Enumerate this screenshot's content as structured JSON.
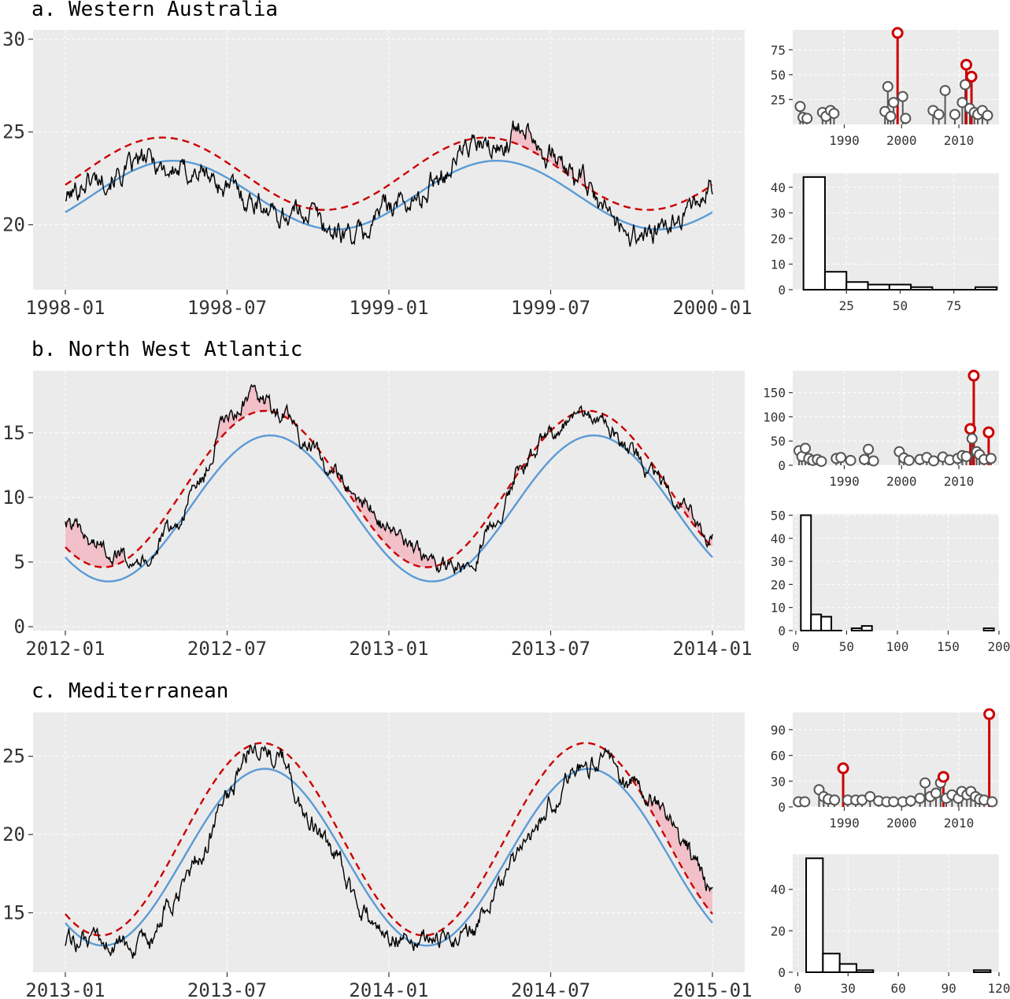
{
  "chart_data": [
    {
      "panel": "a",
      "title": "a. Western Australia",
      "main": {
        "type": "line",
        "x_ticks": [
          "1998-01",
          "1998-07",
          "1999-01",
          "1999-07",
          "2000-01"
        ],
        "y_ticks": [
          20,
          25,
          30
        ],
        "ylim": [
          16.5,
          30.5
        ],
        "climatology": {
          "mean": 21.6,
          "amp": 1.85,
          "peak_month": 4.0
        },
        "threshold": {
          "mean": 22.75,
          "amp": 1.95,
          "peak_month": 3.6
        },
        "temperature": {
          "months": [
            0,
            1,
            2,
            3,
            4,
            5,
            6,
            7,
            8,
            9,
            10,
            11,
            12,
            13,
            14,
            15,
            16,
            17,
            18,
            19,
            20,
            21,
            22,
            23,
            24
          ],
          "values": [
            21.5,
            22.5,
            22.7,
            23.5,
            22.9,
            22.8,
            22.0,
            21.3,
            20.5,
            20.8,
            19.6,
            19.5,
            21.2,
            21.2,
            22.9,
            24.3,
            24.0,
            25.5,
            23.7,
            22.6,
            20.8,
            19.5,
            19.5,
            20.6,
            22.0
          ]
        }
      },
      "lollipop": {
        "type": "scatter",
        "x_ticks": [
          1990,
          2000,
          2010
        ],
        "xlim": [
          1981,
          2017
        ],
        "y_ticks": [
          25,
          50,
          75
        ],
        "ylim": [
          0,
          95
        ],
        "events": [
          {
            "year": 1982.3,
            "v": 18
          },
          {
            "year": 1982.8,
            "v": 7
          },
          {
            "year": 1983.5,
            "v": 6
          },
          {
            "year": 1986.2,
            "v": 12
          },
          {
            "year": 1986.8,
            "v": 8
          },
          {
            "year": 1987.6,
            "v": 14
          },
          {
            "year": 1988.2,
            "v": 11
          },
          {
            "year": 1997.1,
            "v": 13
          },
          {
            "year": 1997.6,
            "v": 38
          },
          {
            "year": 1998.1,
            "v": 8
          },
          {
            "year": 1998.6,
            "v": 22
          },
          {
            "year": 1999.3,
            "v": 92,
            "top": true
          },
          {
            "year": 2000.2,
            "v": 28
          },
          {
            "year": 2000.7,
            "v": 6
          },
          {
            "year": 2005.5,
            "v": 14
          },
          {
            "year": 2006.5,
            "v": 10
          },
          {
            "year": 2007.6,
            "v": 34
          },
          {
            "year": 2009.3,
            "v": 10
          },
          {
            "year": 2010.6,
            "v": 22
          },
          {
            "year": 2011.1,
            "v": 40
          },
          {
            "year": 2011.3,
            "v": 60,
            "top": true
          },
          {
            "year": 2011.9,
            "v": 16
          },
          {
            "year": 2012.2,
            "v": 48,
            "top": true
          },
          {
            "year": 2012.7,
            "v": 12
          },
          {
            "year": 2013.3,
            "v": 10
          },
          {
            "year": 2014.1,
            "v": 14
          },
          {
            "year": 2015.0,
            "v": 9
          }
        ]
      },
      "histogram": {
        "type": "bar",
        "x_ticks": [
          25,
          50,
          75
        ],
        "xlim": [
          0,
          96
        ],
        "y_ticks": [
          0,
          10,
          20,
          30,
          40
        ],
        "ylim": [
          0,
          45.5
        ],
        "bins": [
          {
            "x0": 5,
            "x1": 15,
            "count": 44
          },
          {
            "x0": 15,
            "x1": 25,
            "count": 7
          },
          {
            "x0": 25,
            "x1": 35,
            "count": 3
          },
          {
            "x0": 35,
            "x1": 45,
            "count": 2
          },
          {
            "x0": 45,
            "x1": 55,
            "count": 2
          },
          {
            "x0": 55,
            "x1": 65,
            "count": 1
          },
          {
            "x0": 65,
            "x1": 75,
            "count": 0
          },
          {
            "x0": 75,
            "x1": 85,
            "count": 0
          },
          {
            "x0": 85,
            "x1": 95,
            "count": 1
          }
        ]
      }
    },
    {
      "panel": "b",
      "title": "b. North West Atlantic",
      "main": {
        "type": "line",
        "x_ticks": [
          "2012-01",
          "2012-07",
          "2013-01",
          "2013-07",
          "2014-01"
        ],
        "y_ticks": [
          0,
          5,
          10,
          15
        ],
        "ylim": [
          -0.3,
          19.8
        ],
        "climatology": {
          "mean": 9.15,
          "amp": 5.65,
          "peak_month": 7.6
        },
        "threshold": {
          "mean": 10.65,
          "amp": 6.05,
          "peak_month": 7.4
        },
        "temperature": {
          "months": [
            0,
            1,
            2,
            3,
            4,
            5,
            6,
            7,
            8,
            9,
            10,
            11,
            12,
            13,
            14,
            15,
            16,
            17,
            18,
            19,
            20,
            21,
            22,
            23,
            24
          ],
          "values": [
            8.0,
            6.5,
            5.6,
            5.3,
            7.6,
            11.3,
            16.0,
            17.8,
            16.5,
            14.0,
            11.8,
            9.7,
            7.6,
            5.8,
            4.6,
            4.7,
            8.5,
            12.5,
            15.2,
            16.4,
            15.8,
            13.5,
            11.5,
            9.3,
            6.8
          ]
        }
      },
      "lollipop": {
        "type": "scatter",
        "x_ticks": [
          1990,
          2000,
          2010
        ],
        "xlim": [
          1981,
          2017
        ],
        "y_ticks": [
          0,
          50,
          100,
          150
        ],
        "ylim": [
          0,
          195
        ],
        "events": [
          {
            "year": 1982.1,
            "v": 30
          },
          {
            "year": 1982.6,
            "v": 18
          },
          {
            "year": 1983.2,
            "v": 35
          },
          {
            "year": 1983.8,
            "v": 14
          },
          {
            "year": 1984.5,
            "v": 10
          },
          {
            "year": 1985.3,
            "v": 12
          },
          {
            "year": 1986.0,
            "v": 8
          },
          {
            "year": 1988.6,
            "v": 14
          },
          {
            "year": 1989.4,
            "v": 16
          },
          {
            "year": 1991.1,
            "v": 10
          },
          {
            "year": 1993.5,
            "v": 12
          },
          {
            "year": 1994.2,
            "v": 33
          },
          {
            "year": 1995.1,
            "v": 9
          },
          {
            "year": 1999.6,
            "v": 28
          },
          {
            "year": 2000.4,
            "v": 15
          },
          {
            "year": 2001.3,
            "v": 10
          },
          {
            "year": 2003.2,
            "v": 12
          },
          {
            "year": 2004.4,
            "v": 16
          },
          {
            "year": 2005.6,
            "v": 9
          },
          {
            "year": 2007.2,
            "v": 17
          },
          {
            "year": 2008.4,
            "v": 11
          },
          {
            "year": 2009.8,
            "v": 14
          },
          {
            "year": 2010.6,
            "v": 20
          },
          {
            "year": 2011.3,
            "v": 18
          },
          {
            "year": 2012.0,
            "v": 75,
            "top": true
          },
          {
            "year": 2012.3,
            "v": 55
          },
          {
            "year": 2012.6,
            "v": 185,
            "top": true
          },
          {
            "year": 2013.1,
            "v": 28
          },
          {
            "year": 2013.6,
            "v": 22
          },
          {
            "year": 2014.4,
            "v": 12
          },
          {
            "year": 2015.2,
            "v": 68,
            "top": true
          },
          {
            "year": 2015.6,
            "v": 14
          }
        ]
      },
      "histogram": {
        "type": "bar",
        "x_ticks": [
          0,
          50,
          100,
          150,
          200
        ],
        "xlim": [
          -3,
          200
        ],
        "y_ticks": [
          0,
          10,
          20,
          30,
          40,
          50
        ],
        "ylim": [
          0,
          50.5
        ],
        "bins": [
          {
            "x0": 5,
            "x1": 15,
            "count": 50
          },
          {
            "x0": 15,
            "x1": 25,
            "count": 7
          },
          {
            "x0": 25,
            "x1": 35,
            "count": 6
          },
          {
            "x0": 35,
            "x1": 45,
            "count": 0
          },
          {
            "x0": 55,
            "x1": 65,
            "count": 1
          },
          {
            "x0": 65,
            "x1": 75,
            "count": 2
          },
          {
            "x0": 185,
            "x1": 195,
            "count": 1
          }
        ]
      }
    },
    {
      "panel": "c",
      "title": "c. Mediterranean",
      "main": {
        "type": "line",
        "x_ticks": [
          "2013-01",
          "2013-07",
          "2014-01",
          "2014-07",
          "2015-01"
        ],
        "y_ticks": [
          15,
          20,
          25
        ],
        "ylim": [
          11.2,
          27.8
        ],
        "climatology": {
          "mean": 18.55,
          "amp": 5.65,
          "peak_month": 7.4
        },
        "threshold": {
          "mean": 19.7,
          "amp": 6.15,
          "peak_month": 7.3
        },
        "temperature": {
          "months": [
            0,
            1,
            2,
            3,
            4,
            5,
            6,
            7,
            8,
            9,
            10,
            11,
            12,
            13,
            14,
            15,
            16,
            17,
            18,
            19,
            20,
            21,
            22,
            23,
            24
          ],
          "values": [
            13.3,
            13.1,
            12.9,
            12.7,
            15.6,
            18.5,
            22.5,
            25.8,
            24.8,
            21.0,
            18.5,
            15.0,
            13.6,
            13.5,
            13.2,
            13.8,
            16.4,
            19.0,
            22.0,
            24.0,
            24.8,
            23.3,
            22.0,
            19.2,
            16.3
          ]
        }
      },
      "lollipop": {
        "type": "scatter",
        "x_ticks": [
          1990,
          2000,
          2010
        ],
        "xlim": [
          1981,
          2017
        ],
        "y_ticks": [
          0,
          30,
          60,
          90
        ],
        "ylim": [
          0,
          110
        ],
        "events": [
          {
            "year": 1982.0,
            "v": 6
          },
          {
            "year": 1983.1,
            "v": 6
          },
          {
            "year": 1985.6,
            "v": 20
          },
          {
            "year": 1986.4,
            "v": 12
          },
          {
            "year": 1987.2,
            "v": 9
          },
          {
            "year": 1988.3,
            "v": 8
          },
          {
            "year": 1989.8,
            "v": 45,
            "top": true
          },
          {
            "year": 1990.6,
            "v": 8
          },
          {
            "year": 1992.0,
            "v": 8
          },
          {
            "year": 1993.1,
            "v": 8
          },
          {
            "year": 1994.5,
            "v": 12
          },
          {
            "year": 1996.0,
            "v": 7
          },
          {
            "year": 1997.4,
            "v": 6
          },
          {
            "year": 1998.6,
            "v": 6
          },
          {
            "year": 2000.2,
            "v": 6
          },
          {
            "year": 2001.6,
            "v": 7
          },
          {
            "year": 2003.2,
            "v": 10
          },
          {
            "year": 2004.1,
            "v": 28
          },
          {
            "year": 2005.0,
            "v": 12
          },
          {
            "year": 2006.0,
            "v": 16
          },
          {
            "year": 2006.8,
            "v": 28
          },
          {
            "year": 2007.3,
            "v": 35,
            "top": true
          },
          {
            "year": 2007.8,
            "v": 10
          },
          {
            "year": 2008.8,
            "v": 14
          },
          {
            "year": 2009.9,
            "v": 10
          },
          {
            "year": 2010.5,
            "v": 18
          },
          {
            "year": 2011.4,
            "v": 14
          },
          {
            "year": 2012.1,
            "v": 18
          },
          {
            "year": 2012.9,
            "v": 12
          },
          {
            "year": 2013.6,
            "v": 9
          },
          {
            "year": 2014.4,
            "v": 8
          },
          {
            "year": 2015.3,
            "v": 108,
            "top": true
          },
          {
            "year": 2015.8,
            "v": 6
          }
        ]
      },
      "histogram": {
        "type": "bar",
        "x_ticks": [
          0,
          30,
          60,
          90,
          120
        ],
        "xlim": [
          -3,
          120
        ],
        "y_ticks": [
          0,
          20,
          40
        ],
        "ylim": [
          0,
          57
        ],
        "bins": [
          {
            "x0": 5,
            "x1": 15,
            "count": 55
          },
          {
            "x0": 15,
            "x1": 25,
            "count": 9
          },
          {
            "x0": 25,
            "x1": 35,
            "count": 4
          },
          {
            "x0": 35,
            "x1": 45,
            "count": 1
          },
          {
            "x0": 105,
            "x1": 115,
            "count": 1
          }
        ]
      }
    }
  ]
}
